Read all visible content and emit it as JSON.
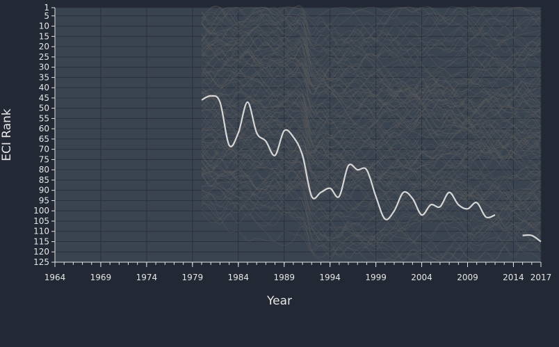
{
  "colors": {
    "background": "#222834",
    "plot_background": "#3a4350",
    "axis": "#e6e6e6",
    "grid": "#2a313c",
    "highlight_line": "#d7d7d7",
    "context_lines": "#5c5c5c"
  },
  "chart_data": {
    "type": "line",
    "xlabel": "Year",
    "ylabel": "ECI Rank",
    "xlim": [
      1964,
      2017
    ],
    "ylim": [
      125,
      1
    ],
    "y_inverted": true,
    "grid": true,
    "x_ticks": [
      1964,
      1969,
      1974,
      1979,
      1984,
      1989,
      1994,
      1999,
      2004,
      2009,
      2014,
      2017
    ],
    "x_tick_labels": [
      "1964",
      "1969",
      "1974",
      "1979",
      "1984",
      "1989",
      "1994",
      "1999",
      "2004",
      "2009",
      "2014",
      "2017"
    ],
    "y_ticks": [
      1,
      5,
      10,
      15,
      20,
      25,
      30,
      35,
      40,
      45,
      50,
      55,
      60,
      65,
      70,
      75,
      80,
      85,
      90,
      95,
      100,
      105,
      110,
      115,
      120,
      125
    ],
    "y_tick_labels": [
      "1",
      "5",
      "10",
      "15",
      "20",
      "25",
      "30",
      "35",
      "40",
      "45",
      "50",
      "55",
      "60",
      "65",
      "70",
      "75",
      "80",
      "85",
      "90",
      "95",
      "100",
      "105",
      "110",
      "115",
      "120",
      "125"
    ],
    "series": [
      {
        "role": "highlighted",
        "segments": [
          {
            "x": [
              1980,
              1981,
              1982,
              1983,
              1984,
              1985,
              1986,
              1987,
              1988,
              1989,
              1990,
              1991,
              1992,
              1993,
              1994,
              1995,
              1996,
              1997,
              1998,
              1999,
              2000,
              2001,
              2002,
              2003,
              2004,
              2005,
              2006,
              2007,
              2008,
              2009,
              2010,
              2011,
              2012
            ],
            "y": [
              46,
              44,
              47,
              68,
              62,
              47,
              62,
              66,
              73,
              61,
              64,
              73,
              93,
              91,
              89,
              93,
              78,
              80,
              80,
              93,
              104,
              100,
              91,
              94,
              102,
              97,
              98,
              91,
              97,
              99,
              96,
              103,
              102
            ]
          },
          {
            "x": [
              2015,
              2016,
              2017
            ],
            "y": [
              112,
              112,
              115
            ]
          }
        ]
      }
    ],
    "context_series": {
      "description_count": 120,
      "x_start_before_1992": 1980,
      "x_end": 2017
    }
  }
}
